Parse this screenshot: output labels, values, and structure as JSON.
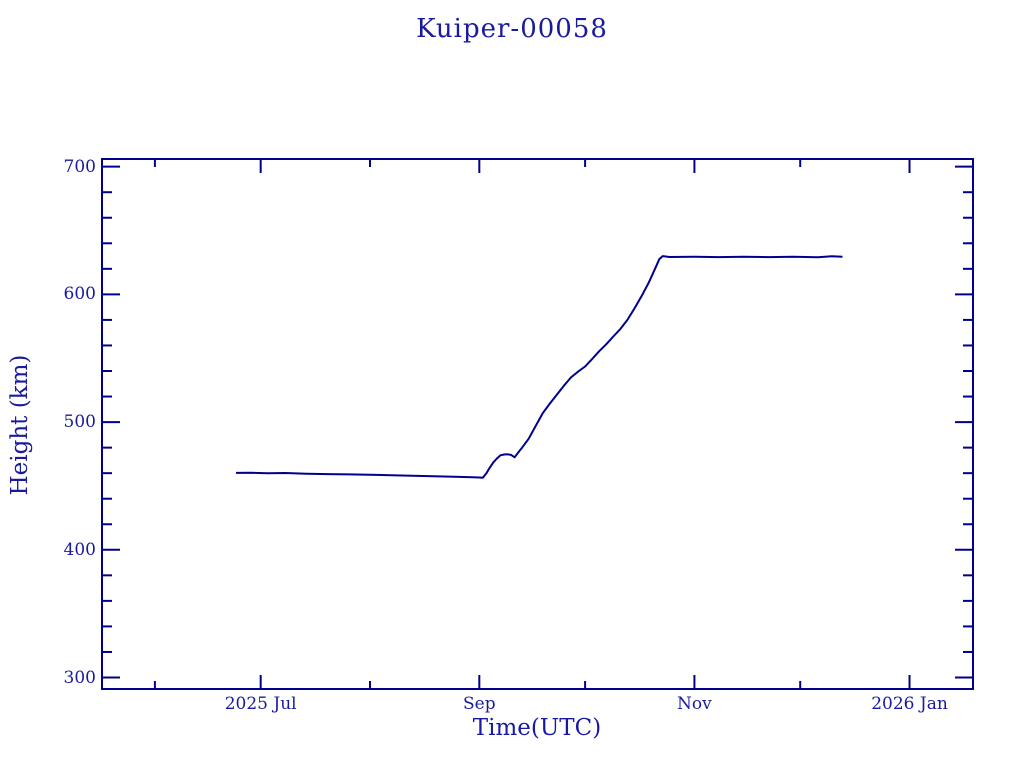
{
  "colors": {
    "stroke": "#00008b",
    "text": "#1a1aa0",
    "background": "#ffffff"
  },
  "chart_data": {
    "type": "line",
    "title": "Kuiper-00058",
    "xlabel": "Time(UTC)",
    "ylabel": "Height (km)",
    "x_range": [
      "2025-05-17",
      "2026-01-19"
    ],
    "ylim": [
      291,
      706
    ],
    "grid": false,
    "legend": "none",
    "x_ticks": [
      {
        "date": "2025-06-01",
        "label": "",
        "major": false
      },
      {
        "date": "2025-07-01",
        "label": "2025 Jul",
        "major": true
      },
      {
        "date": "2025-08-01",
        "label": "",
        "major": false
      },
      {
        "date": "2025-09-01",
        "label": "Sep",
        "major": true
      },
      {
        "date": "2025-10-01",
        "label": "",
        "major": false
      },
      {
        "date": "2025-11-01",
        "label": "Nov",
        "major": true
      },
      {
        "date": "2025-12-01",
        "label": "",
        "major": false
      },
      {
        "date": "2026-01-01",
        "label": "2026 Jan",
        "major": true
      }
    ],
    "y_ticks": {
      "major_values": [
        300,
        400,
        500,
        600,
        700
      ],
      "major_labels": [
        "300",
        "400",
        "500",
        "600",
        "700"
      ],
      "minor_step": 20
    },
    "series": [
      {
        "name": "height",
        "color": "#00008b",
        "points": [
          [
            "2025-06-24",
            460.2
          ],
          [
            "2025-06-28",
            460.4
          ],
          [
            "2025-07-03",
            459.9
          ],
          [
            "2025-07-08",
            460.1
          ],
          [
            "2025-07-14",
            459.6
          ],
          [
            "2025-07-20",
            459.3
          ],
          [
            "2025-07-26",
            459.0
          ],
          [
            "2025-08-01",
            458.7
          ],
          [
            "2025-08-07",
            458.4
          ],
          [
            "2025-08-13",
            458.0
          ],
          [
            "2025-08-19",
            457.6
          ],
          [
            "2025-08-25",
            457.2
          ],
          [
            "2025-08-30",
            456.8
          ],
          [
            "2025-09-01",
            456.6
          ],
          [
            "2025-09-02",
            456.4
          ],
          [
            "2025-09-03",
            460.0
          ],
          [
            "2025-09-04",
            464.5
          ],
          [
            "2025-09-05",
            468.5
          ],
          [
            "2025-09-06",
            471.5
          ],
          [
            "2025-09-07",
            474.0
          ],
          [
            "2025-09-08",
            474.6
          ],
          [
            "2025-09-09",
            474.8
          ],
          [
            "2025-09-10",
            474.3
          ],
          [
            "2025-09-11",
            472.4
          ],
          [
            "2025-09-12",
            476.0
          ],
          [
            "2025-09-13",
            479.5
          ],
          [
            "2025-09-15",
            487.0
          ],
          [
            "2025-09-17",
            497.0
          ],
          [
            "2025-09-19",
            507.0
          ],
          [
            "2025-09-21",
            514.5
          ],
          [
            "2025-09-23",
            521.5
          ],
          [
            "2025-09-25",
            528.5
          ],
          [
            "2025-09-27",
            535.0
          ],
          [
            "2025-09-29",
            539.5
          ],
          [
            "2025-10-01",
            543.5
          ],
          [
            "2025-10-03",
            549.5
          ],
          [
            "2025-10-05",
            555.5
          ],
          [
            "2025-10-07",
            561.0
          ],
          [
            "2025-10-09",
            567.0
          ],
          [
            "2025-10-11",
            573.0
          ],
          [
            "2025-10-13",
            580.0
          ],
          [
            "2025-10-15",
            589.0
          ],
          [
            "2025-10-17",
            598.5
          ],
          [
            "2025-10-19",
            609.0
          ],
          [
            "2025-10-21",
            621.0
          ],
          [
            "2025-10-22",
            627.5
          ],
          [
            "2025-10-23",
            630.0
          ],
          [
            "2025-10-25",
            629.3
          ],
          [
            "2025-11-01",
            629.4
          ],
          [
            "2025-11-08",
            629.2
          ],
          [
            "2025-11-15",
            629.5
          ],
          [
            "2025-11-22",
            629.2
          ],
          [
            "2025-11-29",
            629.4
          ],
          [
            "2025-12-06",
            629.1
          ],
          [
            "2025-12-10",
            629.8
          ],
          [
            "2025-12-13",
            629.5
          ]
        ]
      }
    ]
  }
}
